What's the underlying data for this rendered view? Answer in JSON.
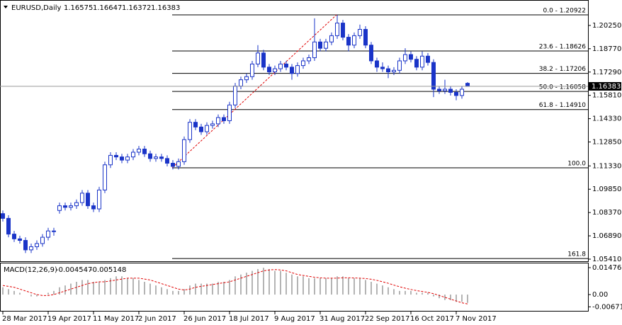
{
  "chart_data": {
    "type": "candlestick",
    "symbol": "EURUSD,Daily",
    "color": "#1a34c8",
    "categories": [
      "28 Mar 2017",
      null,
      null,
      null,
      null,
      null,
      null,
      null,
      "19 Apr 2017",
      null,
      null,
      null,
      null,
      null,
      null,
      null,
      "11 May 2017",
      null,
      null,
      null,
      null,
      null,
      null,
      null,
      "2 Jun 2017",
      null,
      null,
      null,
      null,
      null,
      null,
      null,
      "26 Jun 2017",
      null,
      null,
      null,
      null,
      null,
      null,
      null,
      "18 Jul 2017",
      null,
      null,
      null,
      null,
      null,
      null,
      null,
      "9 Aug 2017",
      null,
      null,
      null,
      null,
      null,
      null,
      null,
      "31 Aug 2017",
      null,
      null,
      null,
      null,
      null,
      null,
      null,
      "22 Sep 2017",
      null,
      null,
      null,
      null,
      null,
      null,
      null,
      "16 Oct 2017",
      null,
      null,
      null,
      null,
      null,
      null,
      null,
      "7 Nov 2017",
      null,
      null
    ],
    "ohlc": [
      [
        1.083,
        1.085,
        1.078,
        1.08
      ],
      [
        1.08,
        1.082,
        1.068,
        1.07
      ],
      [
        1.07,
        1.072,
        1.065,
        1.067
      ],
      [
        1.067,
        1.069,
        1.064,
        1.066
      ],
      [
        1.066,
        1.068,
        1.058,
        1.06
      ],
      [
        1.06,
        1.064,
        1.058,
        1.062
      ],
      [
        1.062,
        1.066,
        1.06,
        1.064
      ],
      [
        1.064,
        1.07,
        1.062,
        1.068
      ],
      [
        1.068,
        1.074,
        1.066,
        1.072
      ],
      [
        1.072,
        1.074,
        1.069,
        1.072
      ],
      [
        1.085,
        1.09,
        1.083,
        1.088
      ],
      [
        1.088,
        1.09,
        1.085,
        1.087
      ],
      [
        1.087,
        1.09,
        1.085,
        1.088
      ],
      [
        1.088,
        1.092,
        1.086,
        1.09
      ],
      [
        1.09,
        1.098,
        1.088,
        1.096
      ],
      [
        1.096,
        1.098,
        1.086,
        1.088
      ],
      [
        1.088,
        1.09,
        1.084,
        1.086
      ],
      [
        1.086,
        1.1,
        1.084,
        1.098
      ],
      [
        1.098,
        1.116,
        1.096,
        1.114
      ],
      [
        1.114,
        1.122,
        1.112,
        1.12
      ],
      [
        1.12,
        1.122,
        1.117,
        1.119
      ],
      [
        1.119,
        1.121,
        1.115,
        1.117
      ],
      [
        1.117,
        1.121,
        1.115,
        1.119
      ],
      [
        1.119,
        1.124,
        1.117,
        1.122
      ],
      [
        1.122,
        1.126,
        1.12,
        1.124
      ],
      [
        1.124,
        1.126,
        1.119,
        1.121
      ],
      [
        1.121,
        1.123,
        1.116,
        1.118
      ],
      [
        1.118,
        1.121,
        1.116,
        1.119
      ],
      [
        1.119,
        1.121,
        1.116,
        1.118
      ],
      [
        1.118,
        1.12,
        1.113,
        1.115
      ],
      [
        1.115,
        1.117,
        1.111,
        1.113
      ],
      [
        1.113,
        1.118,
        1.111,
        1.116
      ],
      [
        1.116,
        1.132,
        1.114,
        1.13
      ],
      [
        1.13,
        1.143,
        1.128,
        1.141
      ],
      [
        1.141,
        1.143,
        1.136,
        1.138
      ],
      [
        1.138,
        1.14,
        1.133,
        1.135
      ],
      [
        1.135,
        1.141,
        1.133,
        1.139
      ],
      [
        1.139,
        1.142,
        1.137,
        1.14
      ],
      [
        1.14,
        1.146,
        1.138,
        1.144
      ],
      [
        1.144,
        1.146,
        1.14,
        1.142
      ],
      [
        1.142,
        1.154,
        1.14,
        1.152
      ],
      [
        1.152,
        1.166,
        1.15,
        1.164
      ],
      [
        1.164,
        1.17,
        1.162,
        1.168
      ],
      [
        1.168,
        1.172,
        1.166,
        1.17
      ],
      [
        1.17,
        1.18,
        1.168,
        1.178
      ],
      [
        1.178,
        1.19,
        1.176,
        1.185
      ],
      [
        1.185,
        1.187,
        1.174,
        1.176
      ],
      [
        1.176,
        1.178,
        1.171,
        1.173
      ],
      [
        1.173,
        1.177,
        1.171,
        1.175
      ],
      [
        1.175,
        1.18,
        1.173,
        1.178
      ],
      [
        1.178,
        1.18,
        1.174,
        1.176
      ],
      [
        1.176,
        1.178,
        1.168,
        1.172
      ],
      [
        1.172,
        1.179,
        1.17,
        1.177
      ],
      [
        1.177,
        1.182,
        1.175,
        1.18
      ],
      [
        1.18,
        1.184,
        1.178,
        1.182
      ],
      [
        1.182,
        1.207,
        1.18,
        1.192
      ],
      [
        1.192,
        1.194,
        1.186,
        1.188
      ],
      [
        1.188,
        1.194,
        1.186,
        1.192
      ],
      [
        1.192,
        1.198,
        1.19,
        1.196
      ],
      [
        1.196,
        1.209,
        1.194,
        1.204
      ],
      [
        1.204,
        1.206,
        1.193,
        1.195
      ],
      [
        1.195,
        1.197,
        1.186,
        1.19
      ],
      [
        1.19,
        1.198,
        1.188,
        1.196
      ],
      [
        1.196,
        1.203,
        1.194,
        1.2
      ],
      [
        1.2,
        1.202,
        1.188,
        1.19
      ],
      [
        1.19,
        1.192,
        1.178,
        1.18
      ],
      [
        1.18,
        1.182,
        1.173,
        1.176
      ],
      [
        1.176,
        1.179,
        1.173,
        1.175
      ],
      [
        1.175,
        1.177,
        1.169,
        1.173
      ],
      [
        1.173,
        1.176,
        1.171,
        1.174
      ],
      [
        1.174,
        1.182,
        1.172,
        1.18
      ],
      [
        1.18,
        1.188,
        1.178,
        1.184
      ],
      [
        1.184,
        1.186,
        1.179,
        1.181
      ],
      [
        1.181,
        1.183,
        1.174,
        1.176
      ],
      [
        1.176,
        1.186,
        1.174,
        1.183
      ],
      [
        1.183,
        1.185,
        1.177,
        1.179
      ],
      [
        1.179,
        1.181,
        1.157,
        1.162
      ],
      [
        1.162,
        1.164,
        1.159,
        1.161
      ],
      [
        1.161,
        1.168,
        1.159,
        1.162
      ],
      [
        1.162,
        1.164,
        1.158,
        1.16
      ],
      [
        1.16,
        1.162,
        1.155,
        1.158
      ],
      [
        1.158,
        1.164,
        1.156,
        1.162
      ],
      [
        1.16575,
        1.16647,
        1.16372,
        1.16383
      ]
    ],
    "ylim": [
      1.0523,
      1.2164
    ],
    "yticks": [
      {
        "value": 1.2025,
        "label": "1.20250"
      },
      {
        "value": 1.1877,
        "label": "1.18770"
      },
      {
        "value": 1.1729,
        "label": "1.17290"
      },
      {
        "value": 1.1581,
        "label": "1.15810"
      },
      {
        "value": 1.1433,
        "label": "1.14330"
      },
      {
        "value": 1.1285,
        "label": "1.12850"
      },
      {
        "value": 1.1133,
        "label": "1.11330"
      },
      {
        "value": 1.0985,
        "label": "1.09850"
      },
      {
        "value": 1.0837,
        "label": "1.08370"
      },
      {
        "value": 1.0689,
        "label": "1.06890"
      },
      {
        "value": 1.0541,
        "label": "1.05410"
      }
    ],
    "fibo": [
      {
        "label": "0.0 - 1.20922",
        "value": 1.20922
      },
      {
        "label": "23.6 - 1.18626",
        "value": 1.18626
      },
      {
        "label": "38.2 - 1.17206",
        "value": 1.17206
      },
      {
        "label": "50.0 - 1.16058",
        "value": 1.16058
      },
      {
        "label": "61.8 - 1.14910",
        "value": 1.1491
      },
      {
        "label": "100.0",
        "value": 1.1121
      },
      {
        "label": "161.8",
        "value": 1.0545
      }
    ],
    "macd": {
      "name": "MACD(12,26,9)",
      "hist_color": "#b4b4b4",
      "signal_color": "#e00000",
      "ylim": [
        -0.0093,
        0.0167
      ],
      "yticks": [
        0.014763,
        {
          "value": 0,
          "label": "0.00"
        },
        -0.006713
      ],
      "hist": [
        0.004,
        0.003,
        0.002,
        0.001,
        0.0,
        -0.001,
        -0.001,
        0.0,
        0.001,
        0.002,
        0.004,
        0.005,
        0.006,
        0.007,
        0.008,
        0.008,
        0.007,
        0.007,
        0.008,
        0.009,
        0.01,
        0.01,
        0.009,
        0.009,
        0.008,
        0.007,
        0.006,
        0.005,
        0.004,
        0.003,
        0.002,
        0.002,
        0.003,
        0.005,
        0.006,
        0.006,
        0.006,
        0.006,
        0.007,
        0.007,
        0.008,
        0.01,
        0.011,
        0.012,
        0.013,
        0.014,
        0.0147,
        0.014,
        0.013,
        0.013,
        0.012,
        0.011,
        0.01,
        0.01,
        0.009,
        0.009,
        0.009,
        0.009,
        0.009,
        0.01,
        0.01,
        0.009,
        0.009,
        0.009,
        0.008,
        0.007,
        0.006,
        0.005,
        0.004,
        0.003,
        0.002,
        0.002,
        0.002,
        0.001,
        0.001,
        0.001,
        -0.001,
        -0.002,
        -0.003,
        -0.003,
        -0.004,
        -0.004,
        -0.004547
      ],
      "signal": [
        0.005,
        0.0045,
        0.004,
        0.003,
        0.002,
        0.001,
        0.0,
        -0.0005,
        -0.0005,
        0.0,
        0.001,
        0.002,
        0.003,
        0.004,
        0.005,
        0.006,
        0.0065,
        0.007,
        0.007,
        0.0075,
        0.008,
        0.0085,
        0.009,
        0.009,
        0.009,
        0.0085,
        0.008,
        0.007,
        0.006,
        0.005,
        0.004,
        0.003,
        0.0025,
        0.003,
        0.004,
        0.0045,
        0.005,
        0.0055,
        0.006,
        0.0065,
        0.007,
        0.008,
        0.009,
        0.01,
        0.011,
        0.012,
        0.013,
        0.0135,
        0.0137,
        0.0135,
        0.013,
        0.012,
        0.011,
        0.0105,
        0.01,
        0.0095,
        0.0092,
        0.009,
        0.009,
        0.009,
        0.0092,
        0.0092,
        0.0091,
        0.009,
        0.0088,
        0.0084,
        0.0078,
        0.007,
        0.0062,
        0.0052,
        0.0043,
        0.0035,
        0.0028,
        0.0022,
        0.0017,
        0.0012,
        0.0005,
        -0.0005,
        -0.0015,
        -0.0025,
        -0.0035,
        -0.0045,
        -0.005148
      ]
    }
  }
}
